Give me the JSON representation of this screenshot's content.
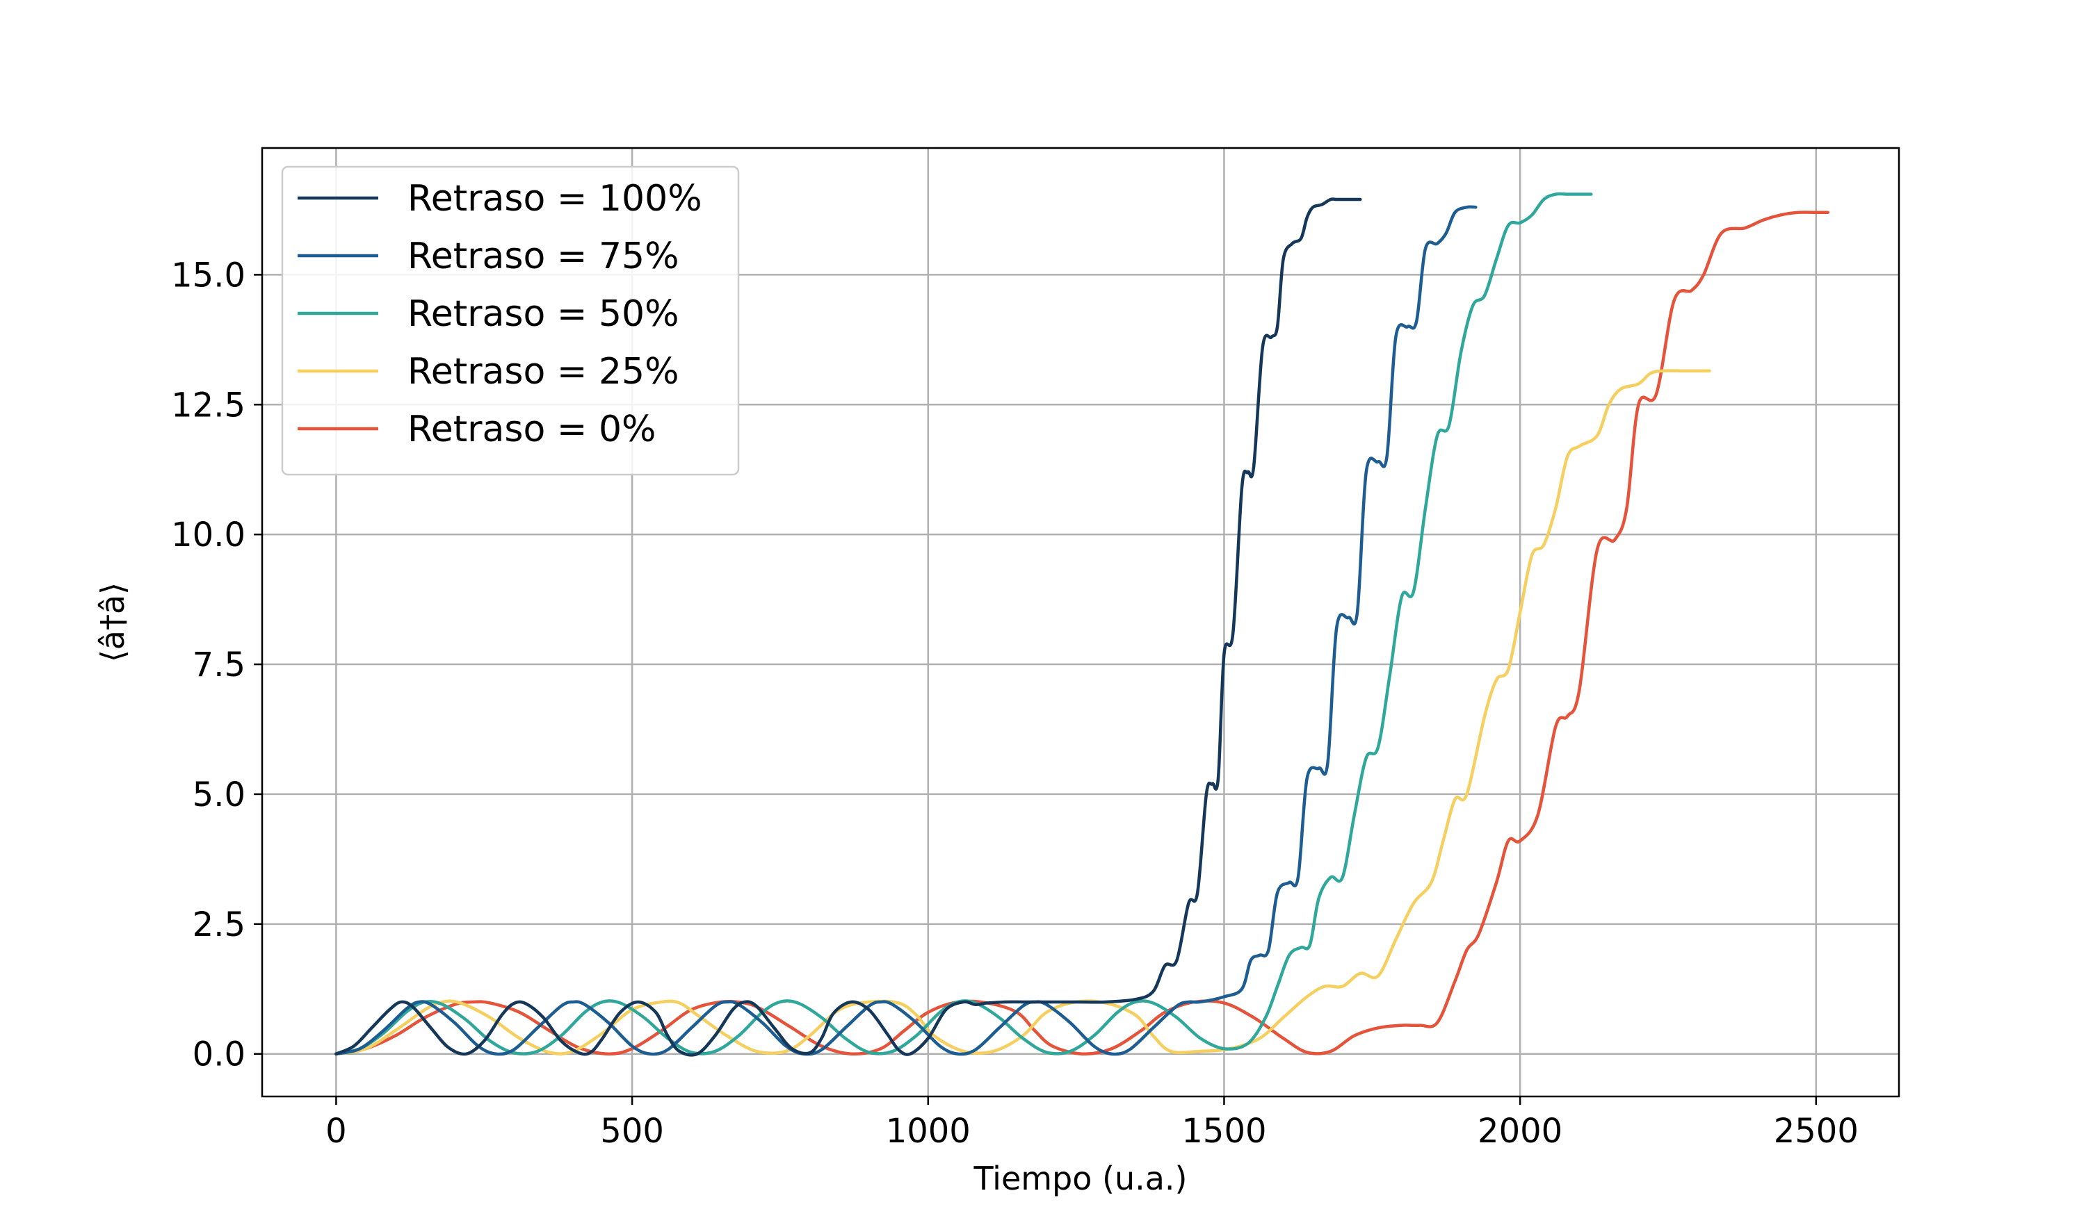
{
  "chart_data": {
    "type": "line",
    "title": "",
    "xlabel": "Tiempo (u.a.)",
    "ylabel": "⟨â†â⟩",
    "xlim": [
      -125,
      2640
    ],
    "ylim": [
      -0.82,
      17.44
    ],
    "xticks": [
      0,
      500,
      1000,
      1500,
      2000,
      2500
    ],
    "xtick_labels": [
      "0",
      "500",
      "1000",
      "1500",
      "2000",
      "2500"
    ],
    "yticks": [
      0.0,
      2.5,
      5.0,
      7.5,
      10.0,
      12.5,
      15.0
    ],
    "ytick_labels": [
      "0.0",
      "2.5",
      "5.0",
      "7.5",
      "10.0",
      "12.5",
      "15.0"
    ],
    "grid": true,
    "legend_position": "top-left",
    "series": [
      {
        "name": "Retraso = 100%",
        "color": "#14375a",
        "x": [
          0,
          30,
          60,
          90,
          110,
          130,
          160,
          190,
          220,
          250,
          280,
          300,
          320,
          350,
          380,
          410,
          430,
          450,
          480,
          510,
          540,
          560,
          580,
          610,
          640,
          670,
          690,
          710,
          740,
          770,
          800,
          820,
          840,
          870,
          900,
          930,
          950,
          970,
          1000,
          1030,
          1060,
          1080,
          1100,
          1130,
          1160,
          1200,
          1250,
          1300,
          1350,
          1380,
          1400,
          1420,
          1440,
          1455,
          1470,
          1480,
          1490,
          1500,
          1515,
          1530,
          1540,
          1550,
          1565,
          1580,
          1590,
          1600,
          1615,
          1630,
          1640,
          1650,
          1665,
          1680,
          1690,
          1700,
          1715,
          1730
        ],
        "y": [
          0,
          0.15,
          0.5,
          0.85,
          1.0,
          0.9,
          0.5,
          0.12,
          0.0,
          0.25,
          0.75,
          0.97,
          0.97,
          0.7,
          0.25,
          0.02,
          0.03,
          0.3,
          0.8,
          1.0,
          0.8,
          0.35,
          0.05,
          0.0,
          0.35,
          0.85,
          1.0,
          0.92,
          0.5,
          0.1,
          0.02,
          0.3,
          0.78,
          1.0,
          0.85,
          0.4,
          0.08,
          0.0,
          0.3,
          0.85,
          1.0,
          0.95,
          0.98,
          1.0,
          1.0,
          1.0,
          1.0,
          1.0,
          1.05,
          1.2,
          1.7,
          1.8,
          2.9,
          3.1,
          5.0,
          5.2,
          5.3,
          7.7,
          8.1,
          10.9,
          11.2,
          11.3,
          13.6,
          13.8,
          14.0,
          15.3,
          15.6,
          15.7,
          16.1,
          16.3,
          16.35,
          16.45,
          16.45,
          16.45,
          16.45,
          16.45
        ]
      },
      {
        "name": "Retraso = 75%",
        "color": "#1d5d92",
        "x": [
          0,
          40,
          80,
          120,
          140,
          160,
          200,
          240,
          270,
          300,
          340,
          380,
          400,
          420,
          460,
          500,
          530,
          560,
          600,
          640,
          660,
          680,
          720,
          760,
          790,
          820,
          860,
          900,
          920,
          940,
          980,
          1020,
          1050,
          1080,
          1120,
          1160,
          1180,
          1200,
          1240,
          1280,
          1310,
          1340,
          1380,
          1420,
          1440,
          1460,
          1500,
          1530,
          1545,
          1560,
          1575,
          1590,
          1610,
          1625,
          1640,
          1660,
          1675,
          1690,
          1710,
          1725,
          1740,
          1760,
          1775,
          1790,
          1810,
          1825,
          1840,
          1860,
          1875,
          1890,
          1910,
          1925
        ],
        "y": [
          0,
          0.1,
          0.45,
          0.88,
          1.0,
          0.95,
          0.6,
          0.15,
          0.0,
          0.08,
          0.5,
          0.92,
          1.0,
          0.95,
          0.6,
          0.15,
          0.0,
          0.08,
          0.5,
          0.92,
          1.0,
          0.95,
          0.6,
          0.15,
          0.0,
          0.08,
          0.5,
          0.92,
          1.0,
          0.95,
          0.6,
          0.15,
          0.0,
          0.08,
          0.5,
          0.92,
          1.0,
          0.95,
          0.6,
          0.15,
          0.0,
          0.08,
          0.5,
          0.92,
          1.0,
          1.0,
          1.1,
          1.25,
          1.8,
          1.9,
          2.0,
          3.1,
          3.3,
          3.4,
          5.3,
          5.5,
          5.6,
          8.2,
          8.4,
          8.5,
          11.2,
          11.4,
          11.5,
          13.8,
          14.0,
          14.1,
          15.5,
          15.6,
          15.8,
          16.2,
          16.3,
          16.3
        ]
      },
      {
        "name": "Retraso = 50%",
        "color": "#2fa89b",
        "x": [
          0,
          40,
          80,
          120,
          150,
          180,
          220,
          260,
          300,
          340,
          380,
          420,
          450,
          480,
          520,
          560,
          600,
          640,
          680,
          720,
          750,
          780,
          820,
          860,
          900,
          940,
          980,
          1020,
          1050,
          1080,
          1120,
          1160,
          1200,
          1240,
          1280,
          1320,
          1350,
          1380,
          1420,
          1460,
          1500,
          1540,
          1570,
          1590,
          1610,
          1630,
          1645,
          1660,
          1680,
          1700,
          1720,
          1740,
          1760,
          1780,
          1800,
          1820,
          1840,
          1860,
          1880,
          1900,
          1920,
          1940,
          1960,
          1980,
          2000,
          2020,
          2040,
          2060,
          2080,
          2100,
          2120
        ],
        "y": [
          0,
          0.1,
          0.4,
          0.82,
          1.0,
          0.95,
          0.65,
          0.25,
          0.02,
          0.05,
          0.35,
          0.8,
          1.0,
          0.98,
          0.7,
          0.3,
          0.03,
          0.05,
          0.35,
          0.8,
          1.0,
          0.98,
          0.7,
          0.3,
          0.03,
          0.05,
          0.35,
          0.8,
          1.0,
          0.98,
          0.7,
          0.3,
          0.03,
          0.05,
          0.35,
          0.8,
          1.0,
          0.98,
          0.7,
          0.3,
          0.1,
          0.2,
          0.7,
          1.3,
          1.9,
          2.05,
          2.1,
          3.0,
          3.4,
          3.4,
          4.6,
          5.7,
          5.9,
          7.3,
          8.8,
          8.9,
          10.5,
          11.9,
          12.1,
          13.5,
          14.4,
          14.6,
          15.3,
          15.95,
          16.0,
          16.15,
          16.45,
          16.55,
          16.55,
          16.55,
          16.55
        ]
      },
      {
        "name": "Retraso = 25%",
        "color": "#f5d060",
        "x": [
          0,
          50,
          100,
          150,
          180,
          210,
          260,
          310,
          360,
          400,
          450,
          500,
          550,
          580,
          610,
          660,
          710,
          760,
          800,
          850,
          900,
          950,
          980,
          1010,
          1060,
          1110,
          1160,
          1200,
          1250,
          1300,
          1350,
          1380,
          1410,
          1460,
          1510,
          1560,
          1600,
          1640,
          1670,
          1700,
          1730,
          1760,
          1790,
          1820,
          1850,
          1870,
          1890,
          1910,
          1940,
          1960,
          1980,
          2000,
          2020,
          2040,
          2060,
          2080,
          2100,
          2130,
          2150,
          2170,
          2200,
          2220,
          2240,
          2270,
          2290,
          2320
        ],
        "y": [
          0,
          0.1,
          0.45,
          0.85,
          1.0,
          0.98,
          0.7,
          0.3,
          0.03,
          0.05,
          0.4,
          0.85,
          1.0,
          0.98,
          0.75,
          0.35,
          0.05,
          0.05,
          0.35,
          0.85,
          1.0,
          0.98,
          0.75,
          0.35,
          0.05,
          0.05,
          0.35,
          0.8,
          1.0,
          0.98,
          0.75,
          0.35,
          0.05,
          0.05,
          0.1,
          0.3,
          0.7,
          1.1,
          1.3,
          1.3,
          1.55,
          1.5,
          2.2,
          2.9,
          3.3,
          4.1,
          4.9,
          5.0,
          6.5,
          7.2,
          7.4,
          8.5,
          9.6,
          9.8,
          10.5,
          11.5,
          11.7,
          11.9,
          12.5,
          12.8,
          12.9,
          13.1,
          13.15,
          13.15,
          13.15,
          13.15
        ]
      },
      {
        "name": "Retraso = 0%",
        "color": "#e5533a",
        "x": [
          0,
          50,
          100,
          150,
          200,
          230,
          260,
          310,
          360,
          410,
          460,
          500,
          550,
          600,
          650,
          690,
          720,
          770,
          820,
          870,
          920,
          960,
          1000,
          1050,
          1100,
          1150,
          1180,
          1210,
          1260,
          1310,
          1360,
          1400,
          1450,
          1500,
          1550,
          1600,
          1640,
          1680,
          1720,
          1760,
          1800,
          1830,
          1860,
          1890,
          1910,
          1930,
          1960,
          1980,
          2000,
          2030,
          2060,
          2080,
          2100,
          2130,
          2160,
          2180,
          2200,
          2230,
          2260,
          2290,
          2310,
          2340,
          2380,
          2410,
          2440,
          2470,
          2500,
          2520
        ],
        "y": [
          0,
          0.1,
          0.35,
          0.7,
          0.95,
          1.0,
          0.98,
          0.8,
          0.45,
          0.12,
          0.0,
          0.1,
          0.45,
          0.85,
          1.0,
          0.98,
          0.85,
          0.5,
          0.15,
          0.0,
          0.1,
          0.45,
          0.8,
          1.0,
          0.98,
          0.8,
          0.45,
          0.15,
          0.0,
          0.1,
          0.45,
          0.8,
          1.0,
          0.98,
          0.7,
          0.3,
          0.03,
          0.05,
          0.35,
          0.5,
          0.55,
          0.55,
          0.6,
          1.4,
          2.0,
          2.3,
          3.3,
          4.1,
          4.1,
          4.6,
          6.3,
          6.5,
          7.0,
          9.7,
          9.9,
          10.5,
          12.5,
          12.7,
          14.5,
          14.7,
          15.0,
          15.8,
          15.9,
          16.05,
          16.15,
          16.2,
          16.2,
          16.2
        ]
      }
    ]
  }
}
